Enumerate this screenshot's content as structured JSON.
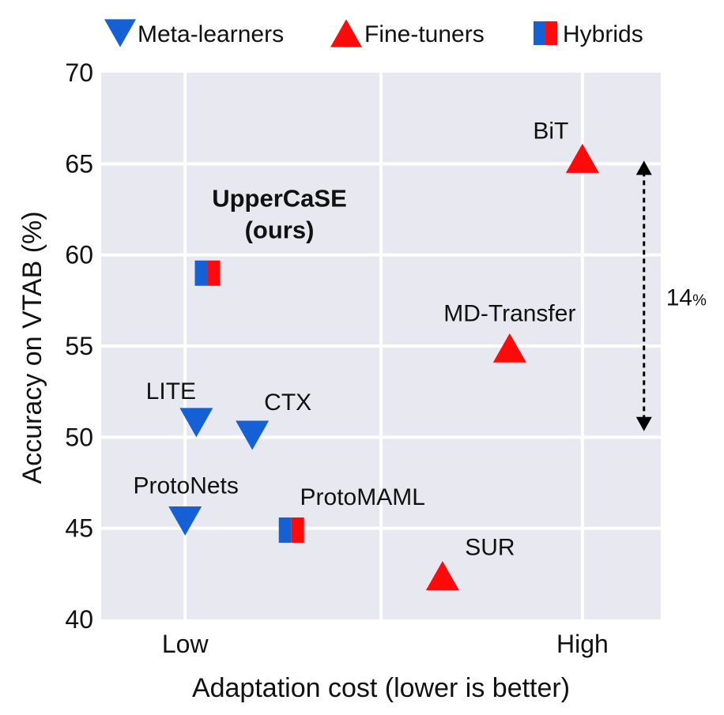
{
  "chart_data": {
    "type": "scatter",
    "title": "",
    "xlabel": "Adaptation cost (lower is better)",
    "ylabel": "Accuracy on VTAB (%)",
    "ylim": [
      40,
      70
    ],
    "yticks": [
      40,
      45,
      50,
      55,
      60,
      65,
      70
    ],
    "xlim": [
      0,
      1
    ],
    "xtick_labels": [
      {
        "label": "Low",
        "x": 0.15
      },
      {
        "label": "High",
        "x": 0.86
      }
    ],
    "grid": true,
    "legend_position": "top",
    "legend": [
      {
        "name": "Meta-learners",
        "marker": "triangle-down",
        "color": "#1560d4"
      },
      {
        "name": "Fine-tuners",
        "marker": "triangle-up",
        "color": "#ff0a0a"
      },
      {
        "name": "Hybrids",
        "marker": "split-square",
        "color": "#1560d4",
        "color2": "#ff0a0a"
      }
    ],
    "points": [
      {
        "label": "BiT",
        "group": "Fine-tuners",
        "x": 0.86,
        "y": 65.3
      },
      {
        "label": "MD-Transfer",
        "group": "Fine-tuners",
        "x": 0.73,
        "y": 54.9
      },
      {
        "label": "SUR",
        "group": "Fine-tuners",
        "x": 0.61,
        "y": 42.4
      },
      {
        "label": "LITE",
        "group": "Meta-learners",
        "x": 0.17,
        "y": 50.8
      },
      {
        "label": "CTX",
        "group": "Meta-learners",
        "x": 0.27,
        "y": 50.1
      },
      {
        "label": "ProtoNets",
        "group": "Meta-learners",
        "x": 0.15,
        "y": 45.4
      },
      {
        "label": "ProtoMAML",
        "group": "Hybrids",
        "x": 0.34,
        "y": 44.9
      },
      {
        "label": "UpperCaSE (ours)",
        "label_lines": [
          "UpperCaSE",
          "(ours)"
        ],
        "bold": true,
        "group": "Hybrids",
        "x": 0.19,
        "y": 59.0
      }
    ],
    "annotations": [
      {
        "type": "double-arrow",
        "x": 0.97,
        "y_from": 65.0,
        "y_to": 50.5,
        "text": "14",
        "text_suffix": "%"
      }
    ],
    "colors": {
      "meta": "#1560d4",
      "fine": "#ff0a0a",
      "plot_bg": "#e8e8f0",
      "grid": "#ffffff"
    }
  }
}
